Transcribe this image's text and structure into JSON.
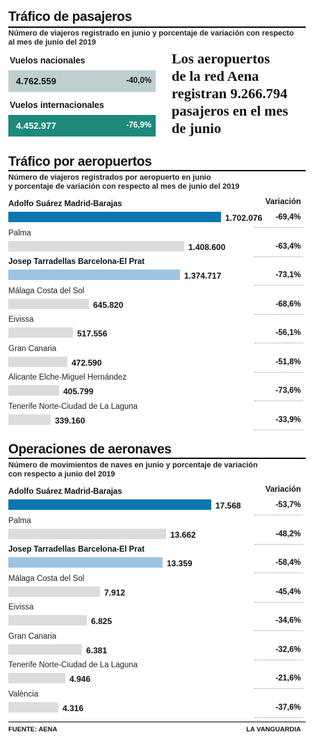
{
  "colors": {
    "madrid_bar": "#0a77b0",
    "barcelona_bar": "#9ec4e1",
    "other_bar": "#dcdcdc",
    "nacionales_box": "#bfcfcf",
    "internacionales_box": "#1d8a7a"
  },
  "section1": {
    "title": "Tráfico de pasajeros",
    "subtitle_line1": "Número de viajeros registrado en junio y porcentaje de variación con respecto",
    "subtitle_line2": "al mes de junio del 2019",
    "nacionales": {
      "label": "Vuelos nacionales",
      "value": "4.762.559",
      "pct": "-40,0%"
    },
    "internacionales": {
      "label": "Vuelos internacionales",
      "value": "4.452.977",
      "pct": "-76,9%"
    },
    "headline": [
      "Los aeropuertos",
      "de la red Aena",
      "registran 9.266.794",
      "pasajeros en el mes",
      "de junio"
    ]
  },
  "section2": {
    "title": "Tráfico por aeropuertos",
    "subtitle_line1": "Número de viajeros registrados  por aeropuerto en junio",
    "subtitle_line2": "y porcentaje de variación con respecto al mes de junio del 2019",
    "variation_header": "Variación"
  },
  "section3": {
    "title": "Operaciones de aeronaves",
    "subtitle_line1": "Número de movimientos de naves en junio y porcentaje de variación",
    "subtitle_line2": "con respecto a junio del 2019",
    "variation_header": "Variación"
  },
  "footer": {
    "source": "FUENTE: AENA",
    "brand": "LA VANGUARDIA"
  },
  "chart_data": [
    {
      "type": "bar",
      "categories": [
        "Adolfo Suárez Madrid-Barajas",
        "Palma",
        "Josep Tarradellas Barcelona-El Prat",
        "Málaga Costa del Sol",
        "Eivissa",
        "Gran Canaria",
        "Alicante Elche-Miguel Hernández",
        "Tenerife Norte-Ciudad de La Laguna"
      ],
      "values": [
        1702076,
        1408600,
        1374717,
        645820,
        517556,
        472590,
        405799,
        339160
      ],
      "value_labels": [
        "1.702.076",
        "1.408.600",
        "1.374.717",
        "645.820",
        "517.556",
        "472.590",
        "405.799",
        "339.160"
      ],
      "variation": [
        "-69,4%",
        "-63,4%",
        "-73,1%",
        "-68,6%",
        "-56,1%",
        "-51,8%",
        "-73,6%",
        "-33,9%"
      ],
      "highlight": [
        "madrid",
        "",
        "barcelona",
        "",
        "",
        "",
        "",
        ""
      ],
      "bold_labels": [
        true,
        false,
        true,
        false,
        false,
        false,
        false,
        false
      ]
    },
    {
      "type": "bar",
      "categories": [
        "Adolfo Suárez Madrid-Barajas",
        "Palma",
        "Josep Tarradellas Barcelona-El Prat",
        "Málaga Costa del Sol",
        "Eivissa",
        "Gran Canaria",
        "Tenerife Norte-Ciudad de La Laguna",
        "València"
      ],
      "values": [
        17568,
        13662,
        13359,
        7912,
        6825,
        6381,
        4946,
        4316
      ],
      "value_labels": [
        "17.568",
        "13.662",
        "13.359",
        "7.912",
        "6.825",
        "6.381",
        "4.946",
        "4.316"
      ],
      "variation": [
        "-53,7%",
        "-48,2%",
        "-58,4%",
        "-45,4%",
        "-34,6%",
        "-32,6%",
        "-21,6%",
        "-37,6%"
      ],
      "highlight": [
        "madrid",
        "",
        "barcelona",
        "",
        "",
        "",
        "",
        ""
      ],
      "bold_labels": [
        true,
        false,
        true,
        false,
        false,
        false,
        false,
        false
      ]
    }
  ]
}
